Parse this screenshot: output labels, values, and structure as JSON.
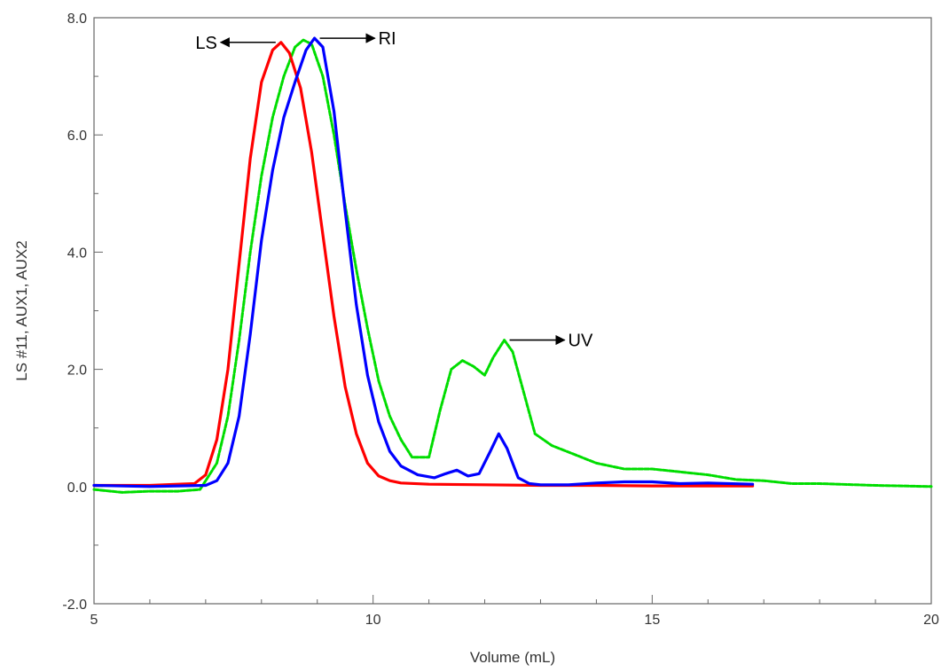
{
  "chart_data": {
    "type": "line",
    "title": "",
    "xlabel": "Volume (mL)",
    "ylabel": "LS #11, AUX1, AUX2",
    "xlim": [
      5,
      20
    ],
    "ylim": [
      -2.0,
      8.0
    ],
    "x_ticks": [
      5,
      10,
      15,
      20
    ],
    "x_tick_labels": [
      "5",
      "10",
      "15",
      "20"
    ],
    "x_minor_step": 1,
    "y_ticks": [
      -2.0,
      0.0,
      2.0,
      4.0,
      6.0,
      8.0
    ],
    "y_tick_labels": [
      "-2.0",
      "0.0",
      "2.0",
      "4.0",
      "6.0",
      "8.0"
    ],
    "y_minor_step": 1.0,
    "grid": false,
    "legend": "none",
    "series": [
      {
        "name": "LS",
        "color": "#ff0000",
        "x": [
          5.0,
          6.0,
          6.8,
          7.0,
          7.2,
          7.4,
          7.6,
          7.8,
          8.0,
          8.2,
          8.35,
          8.5,
          8.7,
          8.9,
          9.1,
          9.3,
          9.5,
          9.7,
          9.9,
          10.1,
          10.3,
          10.5,
          11.0,
          12.0,
          13.0,
          14.0,
          15.0,
          16.0,
          16.8
        ],
        "y": [
          0.02,
          0.02,
          0.05,
          0.2,
          0.8,
          2.0,
          3.8,
          5.6,
          6.9,
          7.45,
          7.58,
          7.4,
          6.8,
          5.7,
          4.3,
          2.9,
          1.7,
          0.9,
          0.4,
          0.18,
          0.1,
          0.06,
          0.04,
          0.03,
          0.02,
          0.02,
          0.01,
          0.01,
          0.01
        ]
      },
      {
        "name": "RI",
        "color": "#0000ff",
        "x": [
          5.0,
          6.0,
          7.0,
          7.2,
          7.4,
          7.6,
          7.8,
          8.0,
          8.2,
          8.4,
          8.6,
          8.8,
          8.95,
          9.1,
          9.3,
          9.5,
          9.7,
          9.9,
          10.1,
          10.3,
          10.5,
          10.8,
          11.1,
          11.3,
          11.5,
          11.7,
          11.9,
          12.1,
          12.25,
          12.4,
          12.6,
          12.8,
          13.0,
          13.5,
          14.0,
          14.5,
          15.0,
          15.5,
          16.0,
          16.8
        ],
        "y": [
          0.02,
          0.0,
          0.02,
          0.1,
          0.4,
          1.2,
          2.6,
          4.2,
          5.4,
          6.3,
          6.9,
          7.45,
          7.65,
          7.5,
          6.4,
          4.7,
          3.1,
          1.9,
          1.1,
          0.6,
          0.35,
          0.2,
          0.15,
          0.22,
          0.28,
          0.18,
          0.22,
          0.6,
          0.9,
          0.65,
          0.15,
          0.05,
          0.03,
          0.03,
          0.06,
          0.08,
          0.08,
          0.05,
          0.06,
          0.04
        ]
      },
      {
        "name": "UV",
        "color": "#00dd00",
        "x": [
          5.0,
          5.5,
          6.0,
          6.5,
          6.9,
          7.2,
          7.4,
          7.6,
          7.8,
          8.0,
          8.2,
          8.4,
          8.6,
          8.75,
          8.9,
          9.1,
          9.3,
          9.5,
          9.7,
          9.9,
          10.1,
          10.3,
          10.5,
          10.7,
          11.0,
          11.2,
          11.4,
          11.6,
          11.8,
          12.0,
          12.15,
          12.35,
          12.5,
          12.7,
          12.9,
          13.2,
          13.6,
          14.0,
          14.5,
          15.0,
          15.5,
          16.0,
          16.5,
          17.0,
          17.5,
          18.0,
          19.0,
          20.0
        ],
        "y": [
          -0.05,
          -0.1,
          -0.08,
          -0.08,
          -0.05,
          0.4,
          1.2,
          2.5,
          4.0,
          5.3,
          6.3,
          7.0,
          7.5,
          7.62,
          7.55,
          7.0,
          6.0,
          4.8,
          3.7,
          2.7,
          1.8,
          1.2,
          0.8,
          0.5,
          0.5,
          1.3,
          2.0,
          2.15,
          2.05,
          1.9,
          2.2,
          2.5,
          2.3,
          1.6,
          0.9,
          0.7,
          0.55,
          0.4,
          0.3,
          0.3,
          0.25,
          0.2,
          0.12,
          0.1,
          0.05,
          0.05,
          0.02,
          0.0
        ]
      }
    ],
    "annotations": [
      {
        "text": "LS",
        "series": "LS",
        "direction": "left",
        "at_x": 8.35,
        "at_y": 7.58
      },
      {
        "text": "RI",
        "series": "RI",
        "direction": "right",
        "at_x": 8.95,
        "at_y": 7.65
      },
      {
        "text": "UV",
        "series": "UV",
        "direction": "right",
        "at_x": 12.35,
        "at_y": 2.5
      }
    ]
  }
}
